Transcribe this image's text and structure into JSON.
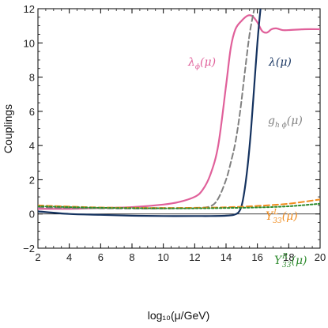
{
  "chart_data": {
    "type": "line",
    "xlabel": "log₁₀(μ/GeV)",
    "ylabel": "Couplings",
    "xlim": [
      2,
      20
    ],
    "ylim": [
      -2,
      12
    ],
    "x_ticks": [
      2,
      4,
      6,
      8,
      10,
      12,
      14,
      16,
      18,
      20
    ],
    "y_ticks": [
      -2,
      0,
      2,
      4,
      6,
      8,
      10,
      12
    ],
    "x_tick_labels": [
      "2",
      "4",
      "6",
      "8",
      "10",
      "12",
      "14",
      "16",
      "18",
      "20"
    ],
    "y_tick_labels": [
      "−2",
      "0",
      "2",
      "4",
      "6",
      "8",
      "10",
      "12"
    ],
    "grid": false,
    "zero_line": true,
    "series": [
      {
        "name": "λφ(μ)",
        "color": "#e0609a",
        "style": "solid",
        "x": [
          2,
          4,
          6,
          8,
          10,
          11,
          12,
          12.5,
          13,
          13.5,
          14,
          14.3,
          14.6,
          15,
          15.4,
          15.7,
          16,
          16.3,
          16.6,
          16.9,
          17.2,
          17.6,
          18,
          19,
          20
        ],
        "y": [
          0.3,
          0.3,
          0.35,
          0.4,
          0.55,
          0.7,
          1.0,
          1.4,
          2.3,
          4.0,
          7.5,
          9.7,
          10.8,
          11.3,
          11.6,
          11.55,
          11.2,
          10.7,
          10.6,
          10.8,
          10.85,
          10.75,
          10.75,
          10.8,
          10.8
        ]
      },
      {
        "name": "λ(μ)",
        "color": "#14325f",
        "style": "solid",
        "x": [
          2,
          4,
          6,
          8,
          10,
          12,
          13,
          14,
          14.5,
          14.8,
          15,
          15.2,
          15.4,
          15.6,
          15.8,
          16,
          16.2,
          16.4
        ],
        "y": [
          0.15,
          0.0,
          -0.05,
          -0.1,
          -0.12,
          -0.12,
          -0.12,
          -0.1,
          -0.05,
          0.1,
          0.5,
          1.5,
          3.0,
          5.0,
          7.5,
          10.0,
          12.0,
          13.5
        ]
      },
      {
        "name": "gₕφ(μ)",
        "color": "#808080",
        "style": "dashed",
        "x": [
          2,
          4,
          6,
          8,
          10,
          12,
          13,
          13.5,
          14,
          14.3,
          14.6,
          14.9,
          15.2,
          15.5,
          15.8,
          16.1
        ],
        "y": [
          0.4,
          0.35,
          0.33,
          0.32,
          0.32,
          0.35,
          0.45,
          0.9,
          2.0,
          3.0,
          4.2,
          6.0,
          8.3,
          10.5,
          12.0,
          13.5
        ]
      },
      {
        "name": "Yᴸ₃₃(μ)",
        "color": "#f08c1e",
        "style": "dashed",
        "x": [
          2,
          4,
          6,
          8,
          10,
          12,
          14,
          16,
          18,
          20
        ],
        "y": [
          0.5,
          0.43,
          0.38,
          0.36,
          0.35,
          0.36,
          0.39,
          0.47,
          0.6,
          0.85
        ]
      },
      {
        "name": "Yᴿ₃₃(μ)",
        "color": "#2e8b2e",
        "style": "dotted",
        "x": [
          2,
          4,
          6,
          8,
          10,
          12,
          14,
          16,
          18,
          20
        ],
        "y": [
          0.45,
          0.4,
          0.36,
          0.34,
          0.33,
          0.33,
          0.35,
          0.38,
          0.45,
          0.6
        ]
      }
    ],
    "labels": {
      "lambda_phi": {
        "base": "λ",
        "sub": "ϕ",
        "tail": "(μ)",
        "color": "#e0609a"
      },
      "lambda": {
        "base": "λ(μ)",
        "color": "#14325f"
      },
      "g_h_phi": {
        "base": "g",
        "sub": "h ϕ",
        "tail": "(μ)",
        "color": "#808080"
      },
      "Y_L": {
        "base": "Y",
        "sup": "L",
        "sub": "33",
        "tail": "(μ)",
        "color": "#f08c1e"
      },
      "Y_R": {
        "base": "Y",
        "sup": "R",
        "sub": "33",
        "tail": "(μ)",
        "color": "#2e8b2e"
      }
    }
  }
}
